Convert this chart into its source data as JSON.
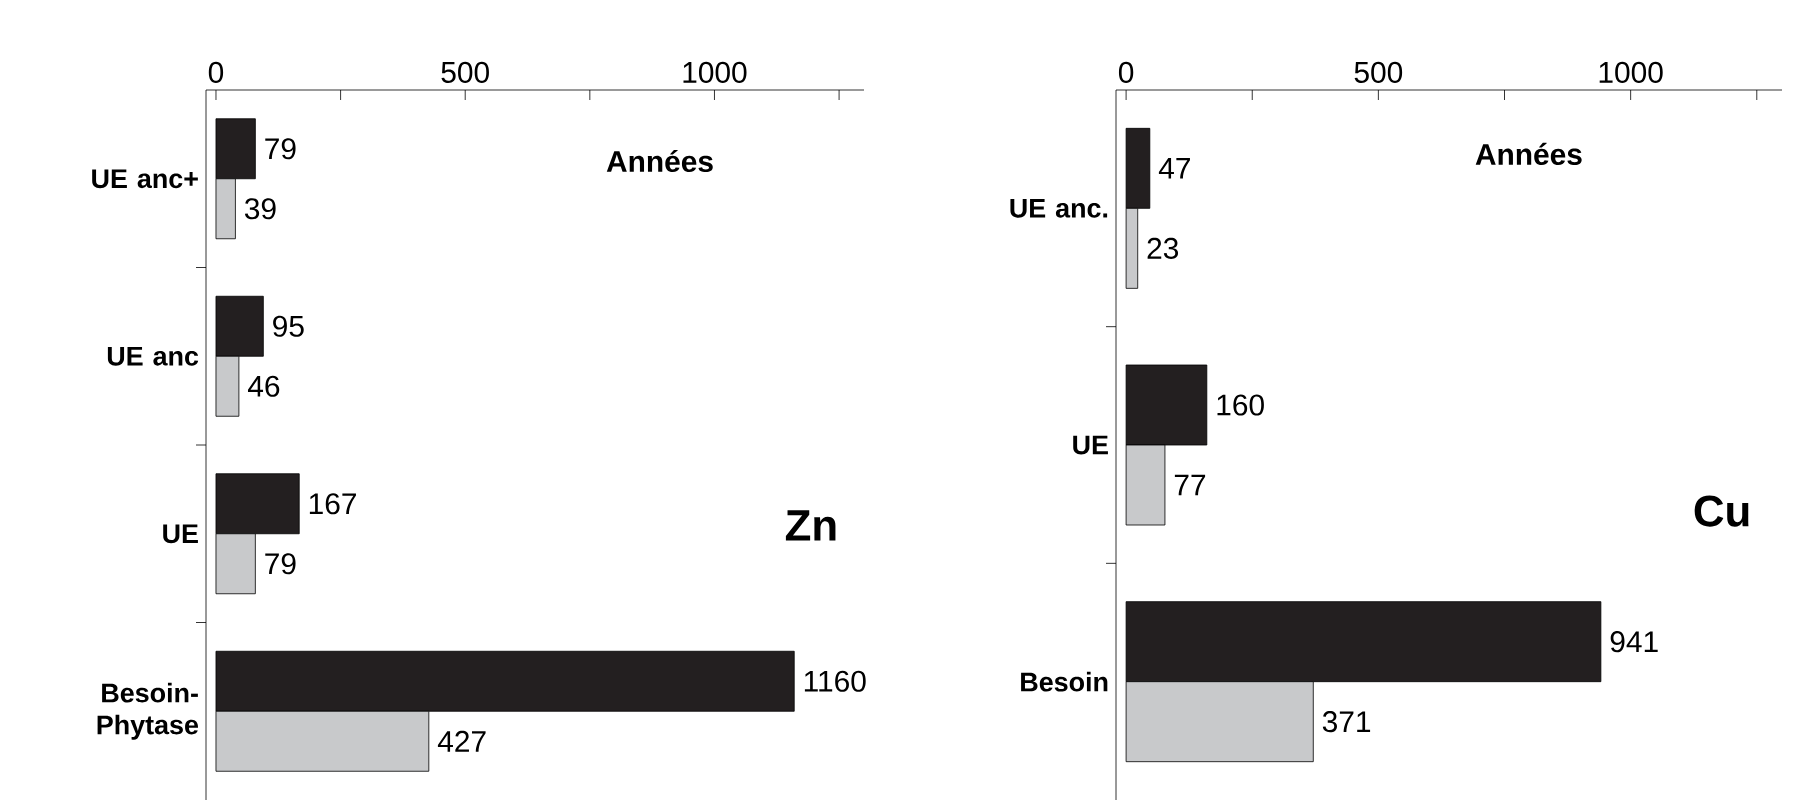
{
  "chart_data": [
    {
      "type": "bar",
      "orientation": "horizontal",
      "title": "Zn",
      "xlabel": "Années",
      "categories": [
        "UE anc+",
        "UE anc",
        "UE",
        "Besoin-Phytase"
      ],
      "series": [
        {
          "color": "#231f20",
          "values": [
            79,
            95,
            167,
            1160
          ]
        },
        {
          "color": "#c8c9cb",
          "values": [
            39,
            46,
            79,
            427
          ]
        }
      ],
      "xlim": [
        -20,
        1300
      ],
      "xticks": [
        0,
        {
          "value": 250,
          "label": null
        },
        500,
        {
          "value": 750,
          "label": null
        },
        1000,
        {
          "value": 1250,
          "label": null
        }
      ],
      "data_labels": true
    },
    {
      "type": "bar",
      "orientation": "horizontal",
      "title": "Cu",
      "xlabel": "Années",
      "categories": [
        "UE anc.",
        "UE",
        "Besoin"
      ],
      "series": [
        {
          "color": "#231f20",
          "values": [
            47,
            160,
            941
          ]
        },
        {
          "color": "#c8c9cb",
          "values": [
            23,
            77,
            371
          ]
        }
      ],
      "xlim": [
        -20,
        1300
      ],
      "xticks": [
        0,
        {
          "value": 250,
          "label": null
        },
        500,
        {
          "value": 750,
          "label": null
        },
        1000,
        {
          "value": 1250,
          "label": null
        }
      ],
      "data_labels": true
    }
  ]
}
